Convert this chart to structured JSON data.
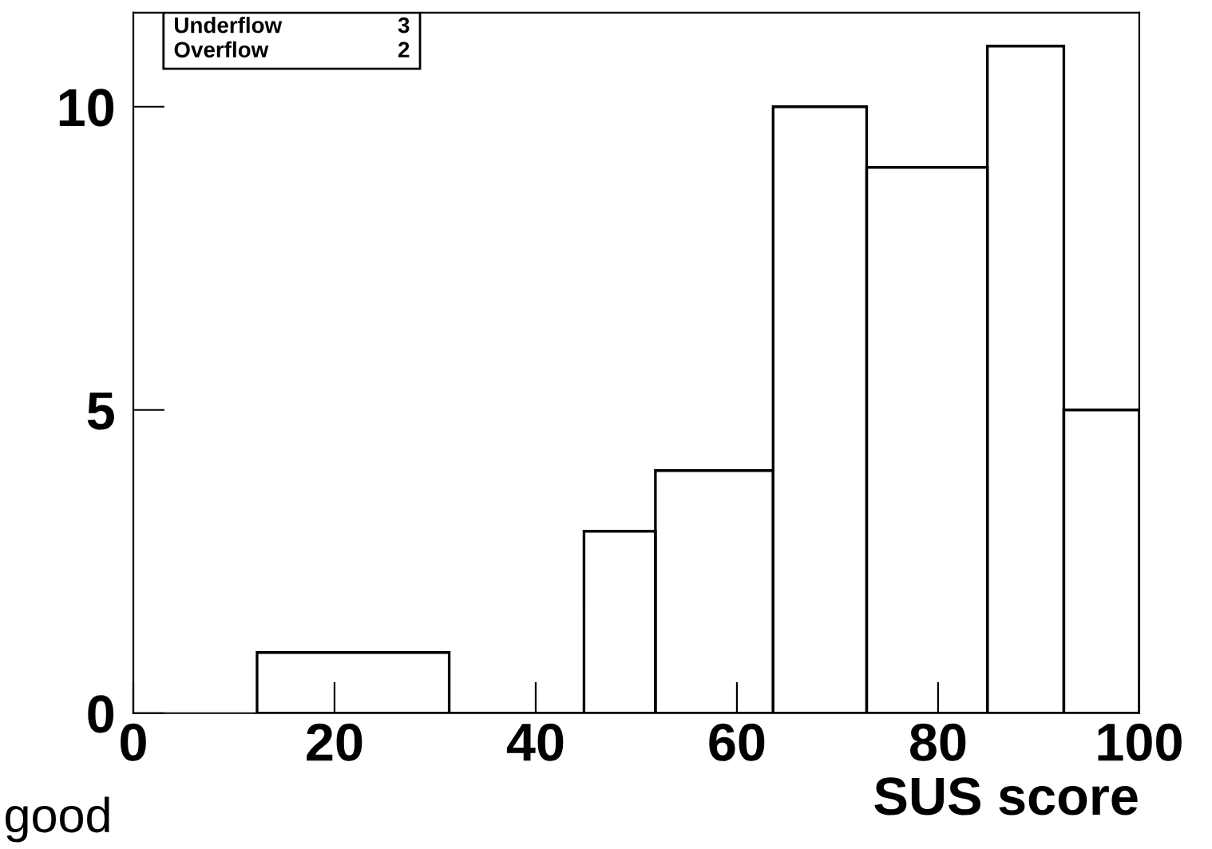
{
  "chart_data": {
    "type": "histogram",
    "xlabel": "SUS score",
    "bins": [
      12.3,
      31.4,
      44.8,
      51.9,
      63.6,
      72.9,
      84.9,
      92.5,
      100
    ],
    "values": [
      1,
      0,
      3,
      4,
      10,
      9,
      11,
      5
    ],
    "color": "#000000",
    "xlim": [
      0,
      100
    ],
    "ylim": [
      0,
      11.55
    ],
    "xticks": [
      0,
      20,
      40,
      60,
      80,
      100
    ],
    "yticks": [
      0,
      5,
      10
    ],
    "grid": false,
    "legend": false,
    "annotations": [
      "Underflow",
      "3",
      "Overflow",
      "2",
      "good"
    ]
  }
}
